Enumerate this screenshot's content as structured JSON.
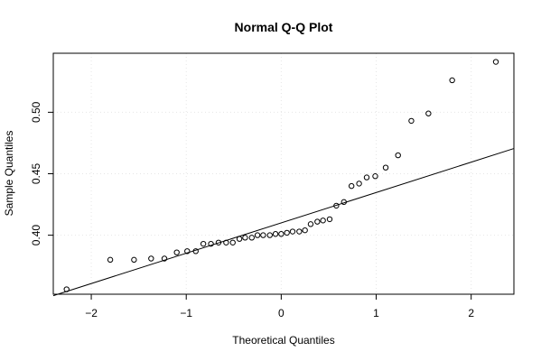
{
  "chart_data": {
    "type": "scatter",
    "title": "Normal Q-Q Plot",
    "xlabel": "Theoretical Quantiles",
    "ylabel": "Sample Quantiles",
    "xlim": [
      -2.4,
      2.45
    ],
    "ylim": [
      0.352,
      0.548
    ],
    "xticks": [
      -2,
      -1,
      0,
      1,
      2
    ],
    "xtick_labels": [
      "−2",
      "−1",
      "0",
      "1",
      "2"
    ],
    "yticks": [
      0.4,
      0.45,
      0.5
    ],
    "ytick_labels": [
      "0.40",
      "0.45",
      "0.50"
    ],
    "grid": true,
    "points": [
      {
        "x": -2.26,
        "y": 0.356
      },
      {
        "x": -1.8,
        "y": 0.38
      },
      {
        "x": -1.55,
        "y": 0.38
      },
      {
        "x": -1.37,
        "y": 0.381
      },
      {
        "x": -1.23,
        "y": 0.381
      },
      {
        "x": -1.1,
        "y": 0.386
      },
      {
        "x": -0.99,
        "y": 0.387
      },
      {
        "x": -0.9,
        "y": 0.387
      },
      {
        "x": -0.82,
        "y": 0.393
      },
      {
        "x": -0.74,
        "y": 0.393
      },
      {
        "x": -0.66,
        "y": 0.394
      },
      {
        "x": -0.58,
        "y": 0.394
      },
      {
        "x": -0.51,
        "y": 0.394
      },
      {
        "x": -0.44,
        "y": 0.397
      },
      {
        "x": -0.38,
        "y": 0.398
      },
      {
        "x": -0.31,
        "y": 0.398
      },
      {
        "x": -0.25,
        "y": 0.4
      },
      {
        "x": -0.19,
        "y": 0.4
      },
      {
        "x": -0.12,
        "y": 0.4
      },
      {
        "x": -0.06,
        "y": 0.401
      },
      {
        "x": 0.0,
        "y": 0.401
      },
      {
        "x": 0.06,
        "y": 0.402
      },
      {
        "x": 0.12,
        "y": 0.403
      },
      {
        "x": 0.19,
        "y": 0.403
      },
      {
        "x": 0.25,
        "y": 0.404
      },
      {
        "x": 0.31,
        "y": 0.409
      },
      {
        "x": 0.38,
        "y": 0.411
      },
      {
        "x": 0.44,
        "y": 0.412
      },
      {
        "x": 0.51,
        "y": 0.413
      },
      {
        "x": 0.58,
        "y": 0.424
      },
      {
        "x": 0.66,
        "y": 0.427
      },
      {
        "x": 0.74,
        "y": 0.44
      },
      {
        "x": 0.82,
        "y": 0.442
      },
      {
        "x": 0.9,
        "y": 0.447
      },
      {
        "x": 0.99,
        "y": 0.448
      },
      {
        "x": 1.1,
        "y": 0.455
      },
      {
        "x": 1.23,
        "y": 0.465
      },
      {
        "x": 1.37,
        "y": 0.493
      },
      {
        "x": 1.55,
        "y": 0.499
      },
      {
        "x": 1.8,
        "y": 0.526
      },
      {
        "x": 2.26,
        "y": 0.541
      }
    ],
    "reference_line": {
      "x1": -2.4,
      "y1": 0.3508,
      "x2": 2.45,
      "y2": 0.4705
    }
  }
}
